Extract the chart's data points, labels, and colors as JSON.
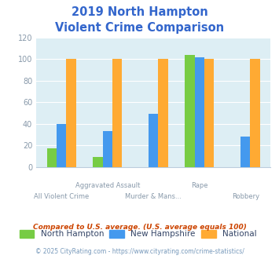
{
  "title_line1": "2019 North Hampton",
  "title_line2": "Violent Crime Comparison",
  "title_color": "#3366cc",
  "series": {
    "North Hampton": {
      "values": [
        17,
        9,
        0,
        104,
        0
      ],
      "color": "#77cc44"
    },
    "New Hampshire": {
      "values": [
        40,
        33,
        49,
        102,
        28
      ],
      "color": "#4499ee"
    },
    "National": {
      "values": [
        100,
        100,
        100,
        100,
        100
      ],
      "color": "#ffaa33"
    }
  },
  "series_order": [
    "North Hampton",
    "New Hampshire",
    "National"
  ],
  "top_xlabels": [
    "",
    "Aggravated Assault",
    "",
    "Rape",
    ""
  ],
  "bot_xlabels": [
    "All Violent Crime",
    "",
    "Murder & Mans...",
    "",
    "Robbery"
  ],
  "ylim": [
    0,
    120
  ],
  "yticks": [
    0,
    20,
    40,
    60,
    80,
    100,
    120
  ],
  "fig_bg_color": "#ffffff",
  "plot_bg_color": "#ddeef4",
  "grid_color": "#ffffff",
  "footnote1": "Compared to U.S. average. (U.S. average equals 100)",
  "footnote2": "© 2025 CityRating.com - https://www.cityrating.com/crime-statistics/",
  "footnote1_color": "#cc4400",
  "footnote2_color": "#7799bb",
  "legend_label_color": "#334466",
  "tick_label_color": "#8899aa",
  "bar_width": 0.21
}
